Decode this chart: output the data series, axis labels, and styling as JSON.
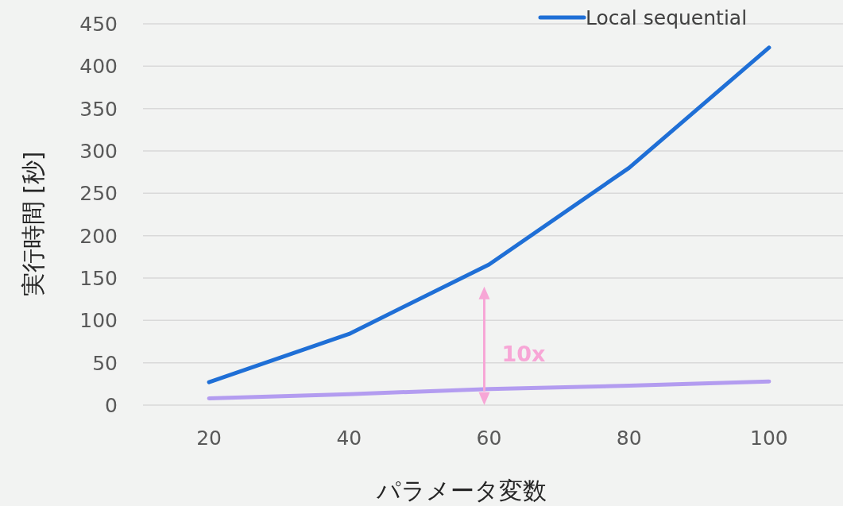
{
  "chart_data": {
    "type": "line",
    "xlabel": "パラメータ変数",
    "ylabel": "実行時間 [秒]",
    "categories": [
      "20",
      "40",
      "60",
      "80",
      "100"
    ],
    "series": [
      {
        "name": "Local sequential",
        "color": "#1f6fd6",
        "values": [
          27,
          84,
          166,
          280,
          422
        ]
      },
      {
        "color": "#b39cf0",
        "values": [
          8,
          13,
          19,
          23,
          28
        ]
      }
    ],
    "ylim": [
      0,
      450
    ],
    "yticks": [
      0,
      50,
      100,
      150,
      200,
      250,
      300,
      350,
      400,
      450
    ],
    "grid": "y",
    "legend": "top right",
    "marker": "none",
    "line_style": "solid",
    "annotations": [
      "10x"
    ]
  }
}
